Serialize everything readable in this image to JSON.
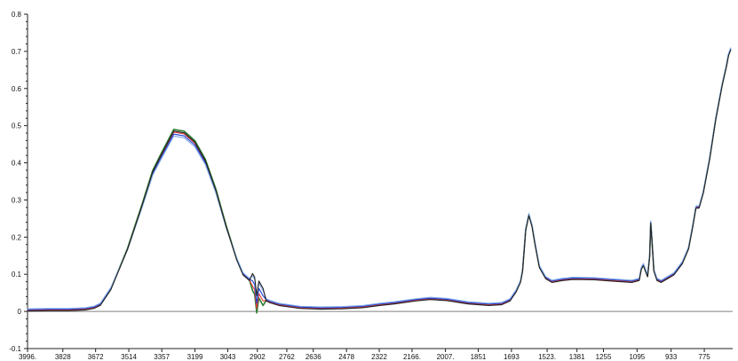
{
  "chart_data": {
    "type": "line",
    "title": "",
    "xlabel": "",
    "ylabel": "",
    "x_reversed": true,
    "xlim": [
      3996,
      640
    ],
    "ylim": [
      -0.1,
      0.8
    ],
    "grid": false,
    "legend": "none",
    "y_ticks": [
      {
        "value": -0.1,
        "label": "-0.1"
      },
      {
        "value": 0,
        "label": "0"
      },
      {
        "value": 0.1,
        "label": "0.1"
      },
      {
        "value": 0.2,
        "label": "0.2"
      },
      {
        "value": 0.3,
        "label": "0.3"
      },
      {
        "value": 0.4,
        "label": "0.4"
      },
      {
        "value": 0.5,
        "label": "0.5"
      },
      {
        "value": 0.6,
        "label": "0.6"
      },
      {
        "value": 0.7,
        "label": "0.7"
      },
      {
        "value": 0.8,
        "label": "0.8"
      }
    ],
    "x_ticks": [
      {
        "value": 3996,
        "label": "3996."
      },
      {
        "value": 3828,
        "label": "3828"
      },
      {
        "value": 3672,
        "label": "3672"
      },
      {
        "value": 3514,
        "label": "3514"
      },
      {
        "value": 3357,
        "label": "3357"
      },
      {
        "value": 3199,
        "label": "3199"
      },
      {
        "value": 3043,
        "label": "3043"
      },
      {
        "value": 2902,
        "label": "2902"
      },
      {
        "value": 2762,
        "label": "2762"
      },
      {
        "value": 2636,
        "label": "2636"
      },
      {
        "value": 2478,
        "label": "2478"
      },
      {
        "value": 2322,
        "label": "2322"
      },
      {
        "value": 2166,
        "label": "2166."
      },
      {
        "value": 2007,
        "label": "2007."
      },
      {
        "value": 1851,
        "label": "1851"
      },
      {
        "value": 1693,
        "label": "1693"
      },
      {
        "value": 1523,
        "label": "1523."
      },
      {
        "value": 1381,
        "label": "1381"
      },
      {
        "value": 1255,
        "label": "1255"
      },
      {
        "value": 1095,
        "label": "1095"
      },
      {
        "value": 933,
        "label": "933"
      },
      {
        "value": 775,
        "label": "775"
      }
    ],
    "base_x": [
      3996,
      3900,
      3800,
      3720,
      3680,
      3650,
      3600,
      3520,
      3450,
      3400,
      3360,
      3300,
      3250,
      3200,
      3150,
      3100,
      3050,
      3000,
      2970,
      2940,
      2925,
      2915,
      2905,
      2895,
      2885,
      2875,
      2860,
      2840,
      2800,
      2700,
      2600,
      2500,
      2400,
      2320,
      2250,
      2150,
      2080,
      2000,
      1900,
      1800,
      1740,
      1700,
      1670,
      1650,
      1640,
      1625,
      1610,
      1595,
      1580,
      1560,
      1530,
      1500,
      1450,
      1400,
      1300,
      1200,
      1120,
      1085,
      1075,
      1065,
      1055,
      1045,
      1035,
      1030,
      1025,
      1015,
      1000,
      980,
      950,
      920,
      880,
      850,
      830,
      815,
      800,
      780,
      750,
      720,
      690,
      670,
      660,
      650
    ],
    "base_y": [
      0.003,
      0.004,
      0.004,
      0.006,
      0.01,
      0.018,
      0.06,
      0.17,
      0.29,
      0.38,
      0.425,
      0.49,
      0.485,
      0.46,
      0.41,
      0.33,
      0.23,
      0.14,
      0.1,
      0.085,
      0.08,
      0.07,
      0.02,
      0.06,
      0.05,
      0.04,
      0.03,
      0.025,
      0.018,
      0.01,
      0.008,
      0.009,
      0.012,
      0.018,
      0.022,
      0.03,
      0.034,
      0.031,
      0.022,
      0.018,
      0.02,
      0.03,
      0.055,
      0.08,
      0.11,
      0.22,
      0.26,
      0.23,
      0.18,
      0.12,
      0.09,
      0.08,
      0.085,
      0.088,
      0.087,
      0.083,
      0.08,
      0.085,
      0.115,
      0.125,
      0.11,
      0.095,
      0.15,
      0.24,
      0.2,
      0.11,
      0.085,
      0.08,
      0.09,
      0.1,
      0.13,
      0.17,
      0.23,
      0.28,
      0.28,
      0.32,
      0.41,
      0.52,
      0.61,
      0.66,
      0.69,
      0.705
    ],
    "series": [
      {
        "color": "#2e7d32",
        "peak_scale": 1.0,
        "offset": 0.0
      },
      {
        "color": "#e53935",
        "peak_scale": 0.985,
        "offset": 0.0
      },
      {
        "color": "#1e3fd6",
        "peak_scale": 0.97,
        "offset": 0.002
      },
      {
        "color": "#7fa8e6",
        "peak_scale": 0.955,
        "offset": 0.004
      },
      {
        "color": "#222222",
        "peak_scale": 0.995,
        "offset": -0.002
      }
    ]
  }
}
